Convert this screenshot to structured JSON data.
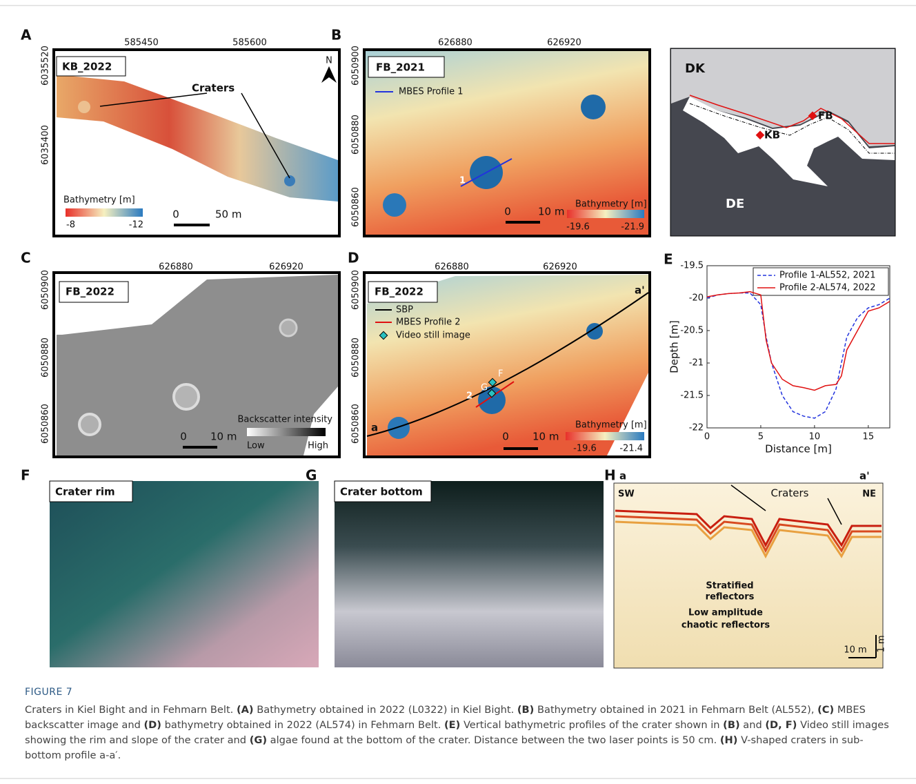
{
  "panels": {
    "A": {
      "label": "A",
      "top_ticks": [
        "585450",
        "585600"
      ],
      "left_ticks": [
        "6035520",
        "6035400"
      ],
      "site": "KB_2022",
      "annotation": "Craters",
      "north": "N",
      "legend_title": "Bathymetry [m]",
      "legend_min": "-8",
      "legend_max": "-12",
      "scale_start": "0",
      "scale_end": "50 m"
    },
    "B": {
      "label": "B",
      "top_ticks": [
        "626880",
        "626920"
      ],
      "left_ticks": [
        "6050900",
        "6050880",
        "6050860"
      ],
      "site": "FB_2021",
      "legend": "MBES Profile 1",
      "profile": "1",
      "scale_start": "0",
      "scale_end": "10 m",
      "legend_title": "Bathymetry [m]",
      "legend_min": "-19.6",
      "legend_max": "-21.9"
    },
    "map": {
      "labels": [
        "DK",
        "FB",
        "KB",
        "DE"
      ]
    },
    "C": {
      "label": "C",
      "top_ticks": [
        "626880",
        "626920"
      ],
      "left_ticks": [
        "6050900",
        "6050880",
        "6050860"
      ],
      "site": "FB_2022",
      "legend_title": "Backscatter intensity",
      "legend_min": "Low",
      "legend_max": "High",
      "scale_start": "0",
      "scale_end": "10 m"
    },
    "D": {
      "label": "D",
      "top_ticks": [
        "626880",
        "626920"
      ],
      "left_ticks": [
        "6050900",
        "6050880",
        "6050860"
      ],
      "site": "FB_2022",
      "legend": [
        "SBP",
        "MBES Profile 2",
        "Video still image"
      ],
      "line_end": "a'",
      "line_start": "a",
      "still_f": "F",
      "still_g": "G",
      "profile": "2",
      "scale_start": "0",
      "scale_end": "10 m",
      "legend_title": "Bathymetry [m]",
      "legend_min": "-19.6",
      "legend_max": "-21.4"
    },
    "E": {
      "label": "E",
      "type": "line",
      "x_label": "Distance [m]",
      "y_label": "Depth [m]",
      "x": [
        0,
        1,
        2,
        3,
        4,
        5,
        5.5,
        6,
        7,
        8,
        9,
        10,
        11,
        12,
        12.5,
        13,
        14,
        15,
        16,
        17
      ],
      "xlim": [
        0,
        17
      ],
      "xticks": [
        0,
        5,
        10,
        15
      ],
      "ylim": [
        -22,
        -19.5
      ],
      "yticks": [
        -19.5,
        -20,
        -20.5,
        -21,
        -21.5,
        -22
      ],
      "series": [
        {
          "name": "Profile 1-AL552, 2021",
          "color": "#2233dd",
          "dash": true,
          "values": [
            -20,
            -19.95,
            -19.93,
            -19.92,
            -19.92,
            -20.1,
            -20.6,
            -21.0,
            -21.5,
            -21.75,
            -21.82,
            -21.85,
            -21.75,
            -21.4,
            -21.0,
            -20.6,
            -20.3,
            -20.15,
            -20.1,
            -20.0
          ]
        },
        {
          "name": "Profile 2-AL574, 2022",
          "color": "#e01010",
          "dash": false,
          "values": [
            -19.98,
            -19.95,
            -19.93,
            -19.92,
            -19.9,
            -19.95,
            -20.65,
            -21.0,
            -21.25,
            -21.35,
            -21.38,
            -21.42,
            -21.35,
            -21.33,
            -21.2,
            -20.8,
            -20.5,
            -20.2,
            -20.15,
            -20.05
          ]
        }
      ]
    },
    "F": {
      "label": "F",
      "caption": "Crater rim"
    },
    "G": {
      "label": "G",
      "caption": "Crater bottom"
    },
    "H": {
      "label": "H",
      "start": "a",
      "end": "a'",
      "left": "SW",
      "right": "NE",
      "craters": "Craters",
      "stratified": [
        "Stratified",
        "reflectors"
      ],
      "chaotic": [
        "Low amplitude",
        "chaotic reflectors"
      ],
      "scale_h": "10 m",
      "scale_v": "1 m"
    }
  },
  "caption": {
    "figure": "FIGURE 7",
    "intro": "Craters in Kiel Bight and in Fehmarn Belt.",
    "parts": [
      {
        "ref": "(A)",
        "text": "Bathymetry obtained in 2022 (L0322) in Kiel Bight."
      },
      {
        "ref": "(B)",
        "text": "Bathymetry obtained in 2021 in Fehmarn Belt (AL552),"
      },
      {
        "ref": "(C)",
        "text": "MBES backscatter image and"
      },
      {
        "ref": "(D)",
        "text": "bathymetry obtained in 2022 (AL574) in Fehmarn Belt."
      },
      {
        "ref": "(E)",
        "text": "Vertical bathymetric profiles of the crater shown in"
      },
      {
        "ref": "(B)",
        "text": "and"
      },
      {
        "ref": "(D, F)",
        "text": "Video still images showing the rim and slope of the crater and"
      },
      {
        "ref": "(G)",
        "text": "algae found at the bottom of the crater. Distance between the two laser points is 50 cm."
      },
      {
        "ref": "(H)",
        "text": "V-shaped craters in sub-bottom profile a-a′."
      }
    ]
  }
}
